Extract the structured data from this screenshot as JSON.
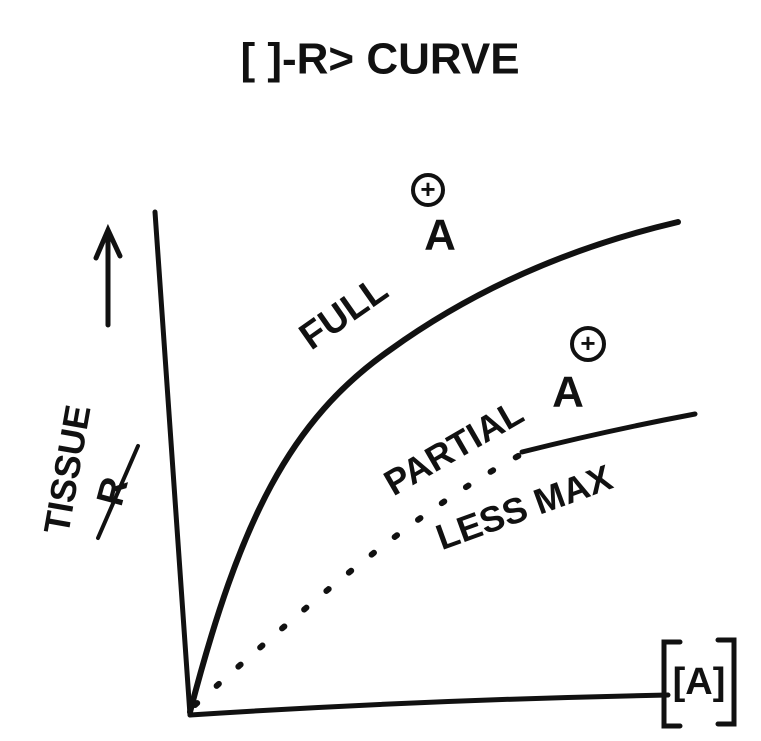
{
  "title": "[ ]-R> CURVE",
  "y_axis": {
    "label": "TISSUE",
    "symbol": "R"
  },
  "x_axis": {
    "label": "[A]"
  },
  "curves": [
    {
      "name": "FULL",
      "agonist": "A",
      "sign": "+"
    },
    {
      "name": "PARTIAL",
      "agonist": "A",
      "sign": "+",
      "note": "LESS MAX"
    }
  ]
}
